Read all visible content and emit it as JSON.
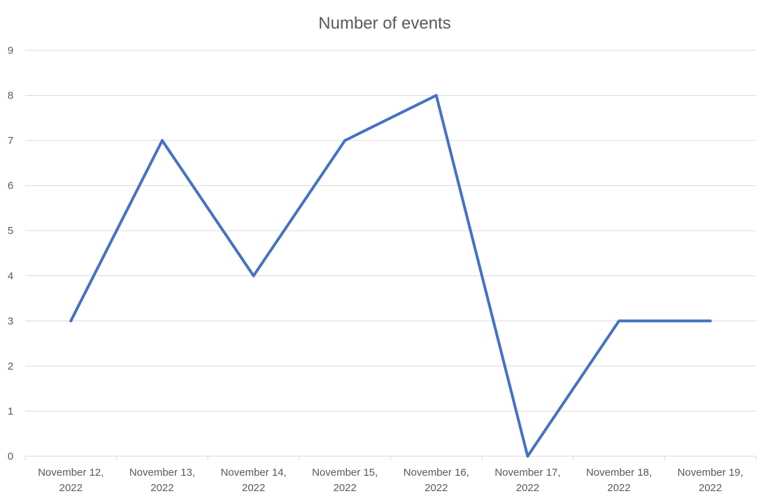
{
  "chart_data": {
    "type": "line",
    "title": "Number of events",
    "xlabel": "",
    "ylabel": "",
    "categories": [
      [
        "November 12,",
        "2022"
      ],
      [
        "November 13,",
        "2022"
      ],
      [
        "November 14,",
        "2022"
      ],
      [
        "November 15,",
        "2022"
      ],
      [
        "November 16,",
        "2022"
      ],
      [
        "November 17,",
        "2022"
      ],
      [
        "November 18,",
        "2022"
      ],
      [
        "November 19,",
        "2022"
      ]
    ],
    "series": [
      {
        "values": [
          3,
          7,
          4,
          7,
          8,
          0,
          3,
          3
        ],
        "color": "#4472c4"
      }
    ],
    "ylim": [
      0,
      9
    ],
    "yticks": [
      0,
      1,
      2,
      3,
      4,
      5,
      6,
      7,
      8,
      9
    ],
    "grid": true,
    "legend": "none"
  }
}
